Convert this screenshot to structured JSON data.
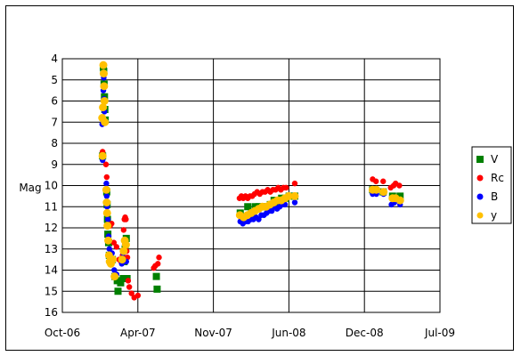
{
  "chart_data": {
    "type": "scatter",
    "title": "",
    "xlabel": "",
    "ylabel": "Mag",
    "x_ticks": [
      "Oct-06",
      "Apr-07",
      "Nov-07",
      "Jun-08",
      "Dec-08",
      "Jul-09"
    ],
    "x_range": [
      "2006-10-01",
      "2009-07-01"
    ],
    "ylim": [
      4,
      16
    ],
    "y_inverted": true,
    "y_ticks": [
      4,
      5,
      6,
      7,
      8,
      9,
      10,
      11,
      12,
      13,
      14,
      15,
      16
    ],
    "grid": "horizontal",
    "legend_position": "right",
    "series": [
      {
        "name": "V",
        "color": "#008000",
        "marker": "square",
        "points": [
          [
            "2007-01-18",
            4.4
          ],
          [
            "2007-01-19",
            4.6
          ],
          [
            "2007-01-20",
            5.2
          ],
          [
            "2007-01-21",
            5.8
          ],
          [
            "2007-01-22",
            6.4
          ],
          [
            "2007-01-23",
            6.9
          ],
          [
            "2007-01-16",
            8.6
          ],
          [
            "2007-01-27",
            10.3
          ],
          [
            "2007-01-28",
            10.9
          ],
          [
            "2007-01-29",
            11.6
          ],
          [
            "2007-01-30",
            12.3
          ],
          [
            "2007-02-01",
            12.7
          ],
          [
            "2007-02-03",
            13.3
          ],
          [
            "2007-02-07",
            13.6
          ],
          [
            "2007-02-11",
            13.5
          ],
          [
            "2007-02-18",
            14.3
          ],
          [
            "2007-02-24",
            14.5
          ],
          [
            "2007-02-26",
            15.0
          ],
          [
            "2007-03-05",
            14.6
          ],
          [
            "2007-03-12",
            14.4
          ],
          [
            "2007-03-14",
            13.6
          ],
          [
            "2007-03-17",
            13.0
          ],
          [
            "2007-03-20",
            12.5
          ],
          [
            "2007-03-22",
            14.4
          ],
          [
            "2007-06-08",
            14.3
          ],
          [
            "2007-06-10",
            14.9
          ],
          [
            "2008-01-17",
            11.3
          ],
          [
            "2008-01-27",
            11.5
          ],
          [
            "2008-02-06",
            11.0
          ],
          [
            "2008-02-16",
            11.3
          ],
          [
            "2008-02-26",
            11.0
          ],
          [
            "2008-03-07",
            11.0
          ],
          [
            "2008-03-17",
            11.0
          ],
          [
            "2008-03-27",
            11.0
          ],
          [
            "2008-04-06",
            10.9
          ],
          [
            "2008-04-16",
            10.7
          ],
          [
            "2008-04-26",
            10.8
          ],
          [
            "2008-05-06",
            10.6
          ],
          [
            "2008-05-16",
            10.6
          ],
          [
            "2008-05-26",
            10.5
          ],
          [
            "2008-06-10",
            10.5
          ],
          [
            "2009-01-03",
            10.2
          ],
          [
            "2009-01-10",
            10.3
          ],
          [
            "2009-01-31",
            10.3
          ],
          [
            "2009-02-25",
            10.5
          ],
          [
            "2009-03-05",
            10.6
          ],
          [
            "2009-03-13",
            10.6
          ],
          [
            "2009-03-17",
            10.5
          ]
        ]
      },
      {
        "name": "Rc",
        "color": "#ff0000",
        "marker": "circle",
        "points": [
          [
            "2007-01-16",
            8.4
          ],
          [
            "2007-01-25",
            9.0
          ],
          [
            "2007-01-27",
            9.6
          ],
          [
            "2007-02-01",
            11.8
          ],
          [
            "2007-02-05",
            11.9
          ],
          [
            "2007-02-09",
            11.8
          ],
          [
            "2007-02-15",
            12.7
          ],
          [
            "2007-02-22",
            12.9
          ],
          [
            "2007-03-01",
            13.5
          ],
          [
            "2007-03-06",
            13.6
          ],
          [
            "2007-03-10",
            13.3
          ],
          [
            "2007-03-13",
            12.1
          ],
          [
            "2007-03-15",
            11.6
          ],
          [
            "2007-03-17",
            11.5
          ],
          [
            "2007-03-19",
            11.6
          ],
          [
            "2007-03-21",
            13.1
          ],
          [
            "2007-03-23",
            13.4
          ],
          [
            "2007-03-25",
            14.5
          ],
          [
            "2007-03-28",
            14.8
          ],
          [
            "2007-04-03",
            15.1
          ],
          [
            "2007-04-10",
            15.3
          ],
          [
            "2007-04-20",
            15.2
          ],
          [
            "2007-06-01",
            13.9
          ],
          [
            "2007-06-05",
            13.8
          ],
          [
            "2007-06-12",
            13.7
          ],
          [
            "2007-06-15",
            13.4
          ],
          [
            "2008-01-15",
            10.6
          ],
          [
            "2008-01-20",
            10.5
          ],
          [
            "2008-01-25",
            10.6
          ],
          [
            "2008-01-31",
            10.5
          ],
          [
            "2008-02-06",
            10.6
          ],
          [
            "2008-02-12",
            10.5
          ],
          [
            "2008-02-18",
            10.5
          ],
          [
            "2008-02-24",
            10.4
          ],
          [
            "2008-03-02",
            10.3
          ],
          [
            "2008-03-09",
            10.4
          ],
          [
            "2008-03-16",
            10.3
          ],
          [
            "2008-03-23",
            10.3
          ],
          [
            "2008-03-30",
            10.2
          ],
          [
            "2008-04-06",
            10.3
          ],
          [
            "2008-04-13",
            10.2
          ],
          [
            "2008-04-20",
            10.2
          ],
          [
            "2008-04-27",
            10.1
          ],
          [
            "2008-05-04",
            10.2
          ],
          [
            "2008-05-11",
            10.1
          ],
          [
            "2008-05-18",
            10.1
          ],
          [
            "2008-06-10",
            9.9
          ],
          [
            "2009-01-03",
            9.7
          ],
          [
            "2009-01-12",
            9.8
          ],
          [
            "2009-01-31",
            9.8
          ],
          [
            "2009-02-20",
            10.1
          ],
          [
            "2009-02-28",
            10.0
          ],
          [
            "2009-03-05",
            9.9
          ],
          [
            "2009-03-15",
            10.0
          ]
        ]
      },
      {
        "name": "B",
        "color": "#0000ff",
        "marker": "circle",
        "points": [
          [
            "2007-01-15",
            7.1
          ],
          [
            "2007-01-16",
            8.8
          ],
          [
            "2007-01-18",
            5.5
          ],
          [
            "2007-01-19",
            4.9
          ],
          [
            "2007-01-20",
            5.9
          ],
          [
            "2007-01-21",
            6.5
          ],
          [
            "2007-01-22",
            7.0
          ],
          [
            "2007-01-26",
            9.9
          ],
          [
            "2007-01-27",
            10.5
          ],
          [
            "2007-01-28",
            11.0
          ],
          [
            "2007-01-30",
            11.6
          ],
          [
            "2007-02-01",
            12.4
          ],
          [
            "2007-02-03",
            13.0
          ],
          [
            "2007-02-06",
            13.4
          ],
          [
            "2007-02-10",
            13.2
          ],
          [
            "2007-02-16",
            14.0
          ],
          [
            "2007-02-22",
            14.2
          ],
          [
            "2007-03-08",
            13.7
          ],
          [
            "2007-03-12",
            13.2
          ],
          [
            "2007-03-16",
            12.8
          ],
          [
            "2007-03-20",
            13.6
          ],
          [
            "2008-01-17",
            11.7
          ],
          [
            "2008-01-24",
            11.8
          ],
          [
            "2008-01-31",
            11.7
          ],
          [
            "2008-02-07",
            11.7
          ],
          [
            "2008-02-14",
            11.6
          ],
          [
            "2008-02-21",
            11.6
          ],
          [
            "2008-02-28",
            11.5
          ],
          [
            "2008-03-06",
            11.6
          ],
          [
            "2008-03-13",
            11.4
          ],
          [
            "2008-03-20",
            11.4
          ],
          [
            "2008-03-27",
            11.3
          ],
          [
            "2008-04-03",
            11.2
          ],
          [
            "2008-04-10",
            11.2
          ],
          [
            "2008-04-17",
            11.0
          ],
          [
            "2008-04-24",
            11.1
          ],
          [
            "2008-05-01",
            11.0
          ],
          [
            "2008-05-08",
            10.9
          ],
          [
            "2008-05-15",
            10.9
          ],
          [
            "2008-06-10",
            10.8
          ],
          [
            "2009-01-03",
            10.4
          ],
          [
            "2009-01-13",
            10.4
          ],
          [
            "2009-02-01",
            10.4
          ],
          [
            "2009-02-22",
            10.9
          ],
          [
            "2009-03-02",
            10.8
          ],
          [
            "2009-03-17",
            10.9
          ]
        ]
      },
      {
        "name": "y",
        "color": "#ffc000",
        "marker": "circle",
        "points": [
          [
            "2007-01-15",
            6.8
          ],
          [
            "2007-01-16",
            8.6
          ],
          [
            "2007-01-17",
            6.3
          ],
          [
            "2007-01-18",
            4.3
          ],
          [
            "2007-01-19",
            4.7
          ],
          [
            "2007-01-20",
            5.3
          ],
          [
            "2007-01-21",
            6.0
          ],
          [
            "2007-01-22",
            7.0
          ],
          [
            "2007-01-26",
            10.2
          ],
          [
            "2007-01-27",
            10.8
          ],
          [
            "2007-01-28",
            11.3
          ],
          [
            "2007-01-29",
            11.9
          ],
          [
            "2007-01-31",
            12.6
          ],
          [
            "2007-02-02",
            13.3
          ],
          [
            "2007-02-04",
            13.6
          ],
          [
            "2007-02-07",
            13.7
          ],
          [
            "2007-02-12",
            13.5
          ],
          [
            "2007-02-17",
            14.3
          ],
          [
            "2007-03-09",
            13.5
          ],
          [
            "2007-03-13",
            13.1
          ],
          [
            "2007-03-16",
            12.6
          ],
          [
            "2007-03-19",
            12.8
          ],
          [
            "2008-01-16",
            11.4
          ],
          [
            "2008-01-26",
            11.5
          ],
          [
            "2008-02-05",
            11.4
          ],
          [
            "2008-02-15",
            11.3
          ],
          [
            "2008-02-25",
            11.2
          ],
          [
            "2008-03-06",
            11.1
          ],
          [
            "2008-03-16",
            11.0
          ],
          [
            "2008-03-26",
            11.0
          ],
          [
            "2008-04-05",
            10.9
          ],
          [
            "2008-04-15",
            10.8
          ],
          [
            "2008-04-25",
            10.7
          ],
          [
            "2008-05-05",
            10.7
          ],
          [
            "2008-05-15",
            10.6
          ],
          [
            "2008-05-25",
            10.5
          ],
          [
            "2008-06-10",
            10.5
          ],
          [
            "2009-01-03",
            10.2
          ],
          [
            "2009-01-13",
            10.2
          ],
          [
            "2009-02-01",
            10.3
          ],
          [
            "2009-02-25",
            10.6
          ],
          [
            "2009-03-05",
            10.6
          ],
          [
            "2009-03-17",
            10.7
          ]
        ]
      }
    ]
  }
}
